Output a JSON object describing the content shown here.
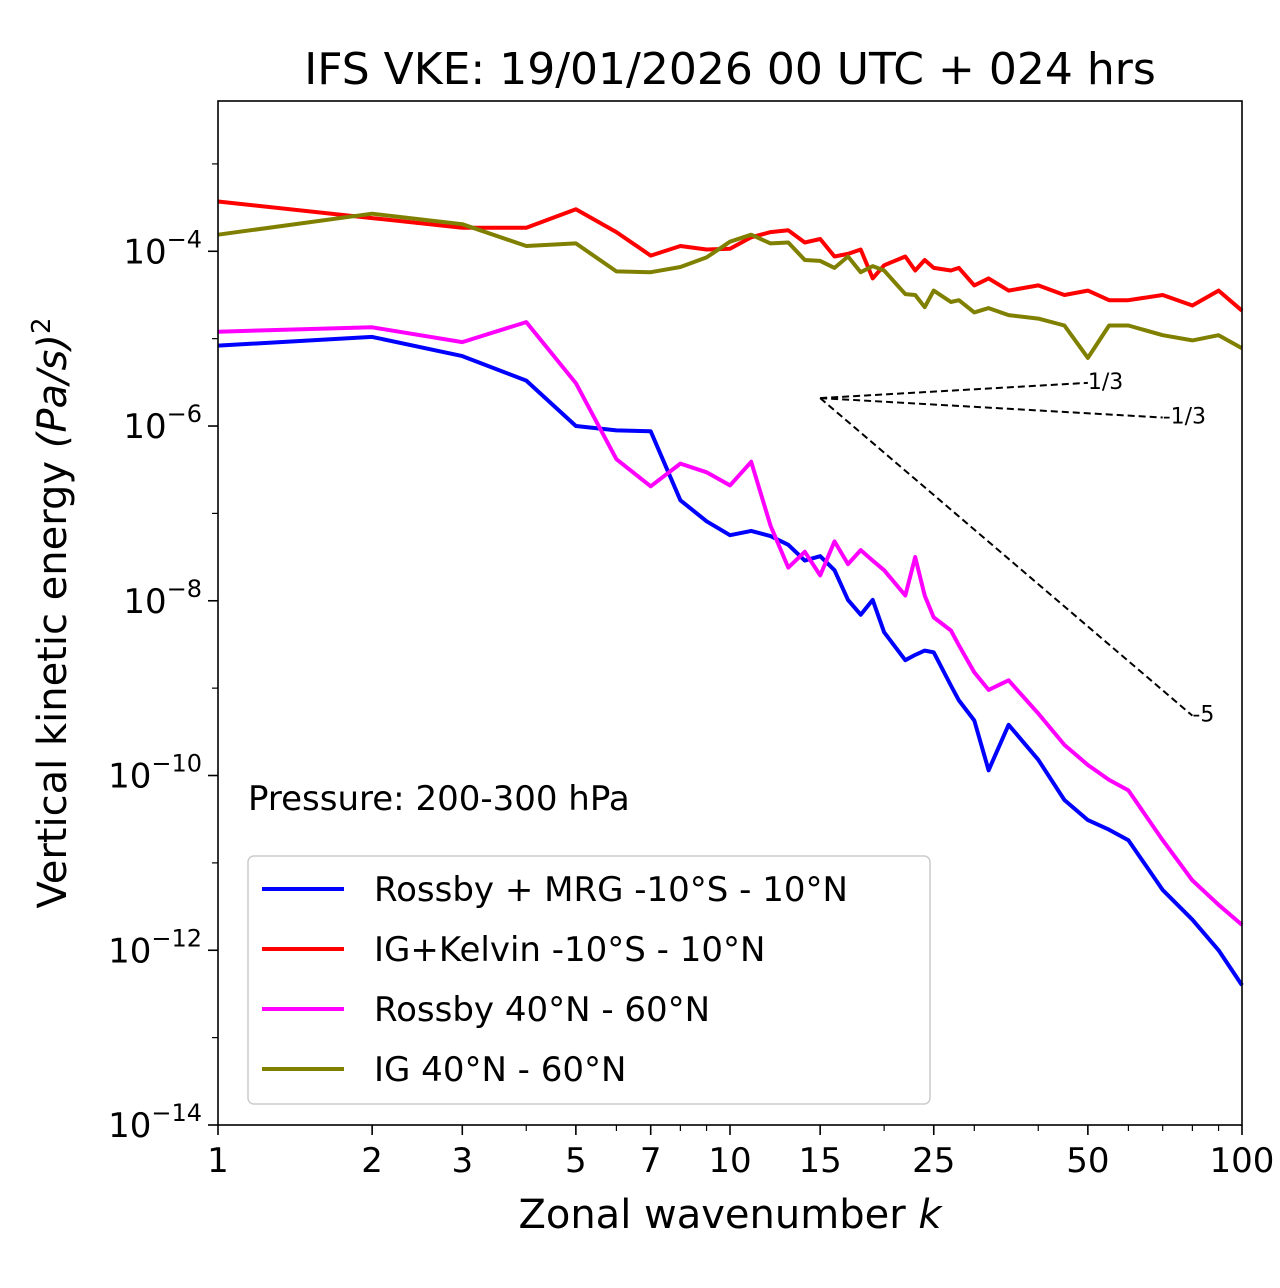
{
  "chart_data": {
    "type": "line",
    "title": "IFS VKE: 19/01/2026 00 UTC + 024 hrs",
    "xlabel": "Zonal wavenumber",
    "xlabel_italic": "k",
    "ylabel": "Vertical kinetic energy",
    "ylabel_units": "(Pa/s)",
    "ylabel_exp": "2",
    "xscale": "log",
    "yscale": "log",
    "xlim": [
      1,
      100
    ],
    "ylim_log10": [
      -14,
      -2.28
    ],
    "xticks": [
      {
        "value": 1,
        "label": "1"
      },
      {
        "value": 2,
        "label": "2"
      },
      {
        "value": 3,
        "label": "3"
      },
      {
        "value": 5,
        "label": "5"
      },
      {
        "value": 7,
        "label": "7"
      },
      {
        "value": 10,
        "label": "10"
      },
      {
        "value": 15,
        "label": "15"
      },
      {
        "value": 25,
        "label": "25"
      },
      {
        "value": 50,
        "label": "50"
      },
      {
        "value": 100,
        "label": "100"
      }
    ],
    "yticks": [
      {
        "log10": -4,
        "base": "10",
        "exp": "−4"
      },
      {
        "log10": -6,
        "base": "10",
        "exp": "−6"
      },
      {
        "log10": -8,
        "base": "10",
        "exp": "−8"
      },
      {
        "log10": -10,
        "base": "10",
        "exp": "−10"
      },
      {
        "log10": -12,
        "base": "10",
        "exp": "−12"
      },
      {
        "log10": -14,
        "base": "10",
        "exp": "−14"
      }
    ],
    "annotation": "Pressure: 200-300 hPa",
    "legend_position": "lower-left",
    "k": [
      1,
      2,
      3,
      4,
      5,
      6,
      7,
      8,
      9,
      10,
      11,
      12,
      13,
      14,
      15,
      16,
      17,
      18,
      19,
      20,
      22,
      23,
      24,
      25,
      27,
      28,
      30,
      32,
      35,
      40,
      45,
      50,
      55,
      60,
      70,
      80,
      90,
      100
    ],
    "series": [
      {
        "name": "Rossby + MRG -10°S - 10°N",
        "color": "#0000ff",
        "log10_values": [
          -5.08,
          -4.98,
          -5.2,
          -5.48,
          -6.0,
          -6.05,
          -6.06,
          -6.85,
          -7.09,
          -7.25,
          -7.2,
          -7.26,
          -7.36,
          -7.54,
          -7.49,
          -7.65,
          -7.99,
          -8.16,
          -7.99,
          -8.36,
          -8.68,
          -8.62,
          -8.57,
          -8.59,
          -8.97,
          -9.14,
          -9.37,
          -9.94,
          -9.42,
          -9.82,
          -10.28,
          -10.51,
          -10.62,
          -10.74,
          -11.31,
          -11.65,
          -12.0,
          -12.4
        ]
      },
      {
        "name": "IG+Kelvin -10°S - 10°N",
        "color": "#ff0000",
        "log10_values": [
          -3.43,
          -3.62,
          -3.73,
          -3.73,
          -3.52,
          -3.78,
          -4.05,
          -3.94,
          -3.98,
          -3.97,
          -3.84,
          -3.78,
          -3.76,
          -3.9,
          -3.86,
          -4.06,
          -4.03,
          -3.98,
          -4.31,
          -4.16,
          -4.06,
          -4.22,
          -4.1,
          -4.19,
          -4.22,
          -4.19,
          -4.39,
          -4.31,
          -4.45,
          -4.39,
          -4.5,
          -4.45,
          -4.56,
          -4.56,
          -4.5,
          -4.62,
          -4.45,
          -4.68
        ]
      },
      {
        "name": "Rossby 40°N - 60°N",
        "color": "#ff00ff",
        "log10_values": [
          -4.92,
          -4.87,
          -5.04,
          -4.81,
          -5.51,
          -6.38,
          -6.69,
          -6.43,
          -6.53,
          -6.68,
          -6.41,
          -7.14,
          -7.62,
          -7.44,
          -7.71,
          -7.32,
          -7.58,
          -7.42,
          -7.54,
          -7.65,
          -7.94,
          -7.5,
          -7.94,
          -8.19,
          -8.34,
          -8.51,
          -8.82,
          -9.02,
          -8.91,
          -9.29,
          -9.65,
          -9.88,
          -10.05,
          -10.17,
          -10.74,
          -11.2,
          -11.48,
          -11.71
        ]
      },
      {
        "name": "IG 40°N - 60°N",
        "color": "#808000",
        "log10_values": [
          -3.81,
          -3.57,
          -3.69,
          -3.94,
          -3.91,
          -4.23,
          -4.24,
          -4.18,
          -4.07,
          -3.89,
          -3.81,
          -3.91,
          -3.9,
          -4.1,
          -4.11,
          -4.19,
          -4.06,
          -4.24,
          -4.17,
          -4.22,
          -4.49,
          -4.5,
          -4.64,
          -4.45,
          -4.58,
          -4.56,
          -4.7,
          -4.65,
          -4.73,
          -4.77,
          -4.85,
          -5.22,
          -4.85,
          -4.85,
          -4.96,
          -5.02,
          -4.96,
          -5.11
        ]
      }
    ],
    "reference_slopes": [
      {
        "label": "1/3",
        "slope": 0.3333,
        "k_start": 15,
        "k_end": 50,
        "log10_start": -5.68
      },
      {
        "label": "-1/3",
        "slope": -0.3333,
        "k_start": 15,
        "k_end": 70,
        "log10_start": -5.68
      },
      {
        "label": "-5",
        "slope": -5,
        "k_start": 15,
        "k_end": 80,
        "log10_start": -5.68
      }
    ]
  }
}
